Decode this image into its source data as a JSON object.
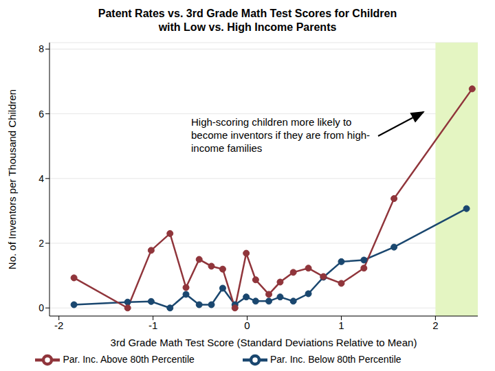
{
  "chart_data": {
    "type": "line",
    "title": "Patent Rates vs. 3rd Grade Math Test Scores for Children with Low vs. High Income Parents",
    "x_label": "3rd Grade Math Test Score (Standard Deviations Relative to Mean)",
    "y_label": "No. of Inventors per Thousand Children",
    "annotation": "High-scoring children more likely to become inventors if they are from high-income families",
    "xlim": [
      -2.1,
      2.45
    ],
    "xticks": [
      -2,
      -1,
      0,
      1,
      2
    ],
    "ylim": [
      -0.25,
      8.2
    ],
    "yticks": [
      0,
      2,
      4,
      6,
      8
    ],
    "grid": true,
    "legend": "bottom",
    "marker": "circle",
    "series": [
      {
        "name": "Par. Inc. Below 80th Percentile",
        "color": "#1a476f",
        "x": [
          -1.84,
          -1.27,
          -1.02,
          -0.82,
          -0.65,
          -0.51,
          -0.38,
          -0.26,
          -0.13,
          -0.01,
          0.09,
          0.23,
          0.35,
          0.49,
          0.65,
          0.81,
          1.0,
          1.24,
          1.56,
          2.33
        ],
        "values": [
          0.1,
          0.18,
          0.2,
          0,
          0.42,
          0.1,
          0.1,
          0.61,
          0.1,
          0.34,
          0.21,
          0.21,
          0.34,
          0.21,
          0.44,
          0.95,
          1.43,
          1.48,
          1.88,
          3.07
        ]
      },
      {
        "name": "Par. Inc. Above 80th Percentile",
        "color": "#90353b",
        "x": [
          -1.84,
          -1.27,
          -1.02,
          -0.82,
          -0.65,
          -0.51,
          -0.38,
          -0.26,
          -0.13,
          -0.01,
          0.09,
          0.23,
          0.35,
          0.49,
          0.65,
          0.81,
          1.0,
          1.24,
          1.56,
          2.39
        ],
        "values": [
          0.93,
          0,
          1.78,
          2.3,
          0.63,
          1.5,
          1.29,
          1.2,
          0,
          1.69,
          0.87,
          0.42,
          0.8,
          1.1,
          1.23,
          0.97,
          0.76,
          1.23,
          3.38,
          6.77
        ]
      }
    ]
  }
}
